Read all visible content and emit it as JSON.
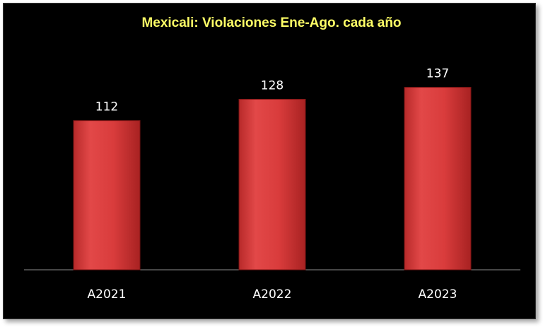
{
  "chart_data": {
    "type": "bar",
    "title": "Mexicali: Violaciones Ene-Ago. cada año",
    "categories": [
      "A2021",
      "A2022",
      "A2023"
    ],
    "values": [
      112,
      128,
      137
    ],
    "xlabel": "",
    "ylabel": "",
    "ylim": [
      0,
      150
    ],
    "grid": false,
    "legend": "none",
    "data_labels": true,
    "colors": {
      "background": "#000000",
      "bar": "#e04444",
      "bar_edge": "#7a1414",
      "title": "#ffff66",
      "text": "#ffffff",
      "axis": "#8c8c8c"
    }
  }
}
